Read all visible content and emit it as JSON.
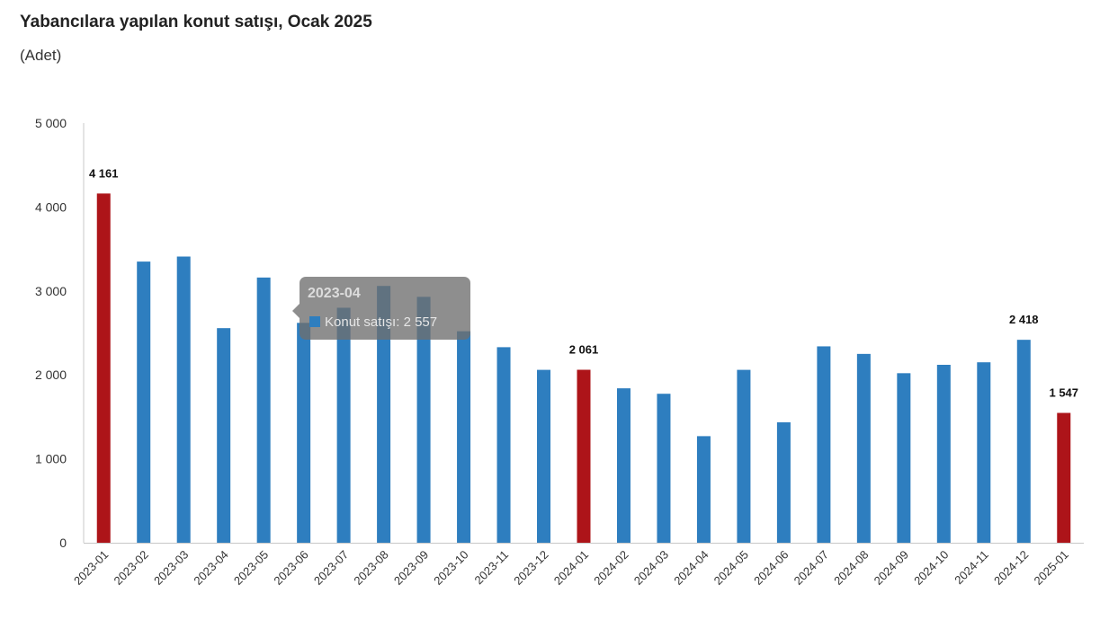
{
  "title": "Yabancılara yapılan konut satışı, Ocak 2025",
  "subtitle": "(Adet)",
  "colors": {
    "bar": "#2e7ebf",
    "highlight": "#ad1419",
    "axis": "#c8c8c8"
  },
  "tooltip": {
    "title": "2023-04",
    "series": "Konut satışı",
    "value_text": "2 557"
  },
  "chart_data": {
    "type": "bar",
    "title": "Yabancılara yapılan konut satışı, Ocak 2025",
    "ylabel": "(Adet)",
    "xlabel": "",
    "ylim": [
      0,
      5000
    ],
    "yticks": [
      0,
      1000,
      2000,
      3000,
      4000,
      5000
    ],
    "ytick_labels": [
      "0",
      "1 000",
      "2 000",
      "3 000",
      "4 000",
      "5 000"
    ],
    "categories": [
      "2023-01",
      "2023-02",
      "2023-03",
      "2023-04",
      "2023-05",
      "2023-06",
      "2023-07",
      "2023-08",
      "2023-09",
      "2023-10",
      "2023-11",
      "2023-12",
      "2024-01",
      "2024-02",
      "2024-03",
      "2024-04",
      "2024-05",
      "2024-06",
      "2024-07",
      "2024-08",
      "2024-09",
      "2024-10",
      "2024-11",
      "2024-12",
      "2025-01"
    ],
    "series": [
      {
        "name": "Konut satışı",
        "values": [
          4161,
          3350,
          3410,
          2557,
          3160,
          2620,
          2800,
          3060,
          2930,
          2520,
          2330,
          2060,
          2061,
          1840,
          1775,
          1270,
          2060,
          1435,
          2340,
          2250,
          2020,
          2120,
          2150,
          2418,
          1547
        ]
      }
    ],
    "highlighted_categories": [
      "2023-01",
      "2024-01",
      "2025-01"
    ],
    "data_labels": [
      {
        "category": "2023-01",
        "text": "4 161"
      },
      {
        "category": "2024-01",
        "text": "2 061"
      },
      {
        "category": "2024-12",
        "text": "2 418"
      },
      {
        "category": "2025-01",
        "text": "1 547"
      }
    ],
    "grid": false,
    "legend": "none"
  }
}
